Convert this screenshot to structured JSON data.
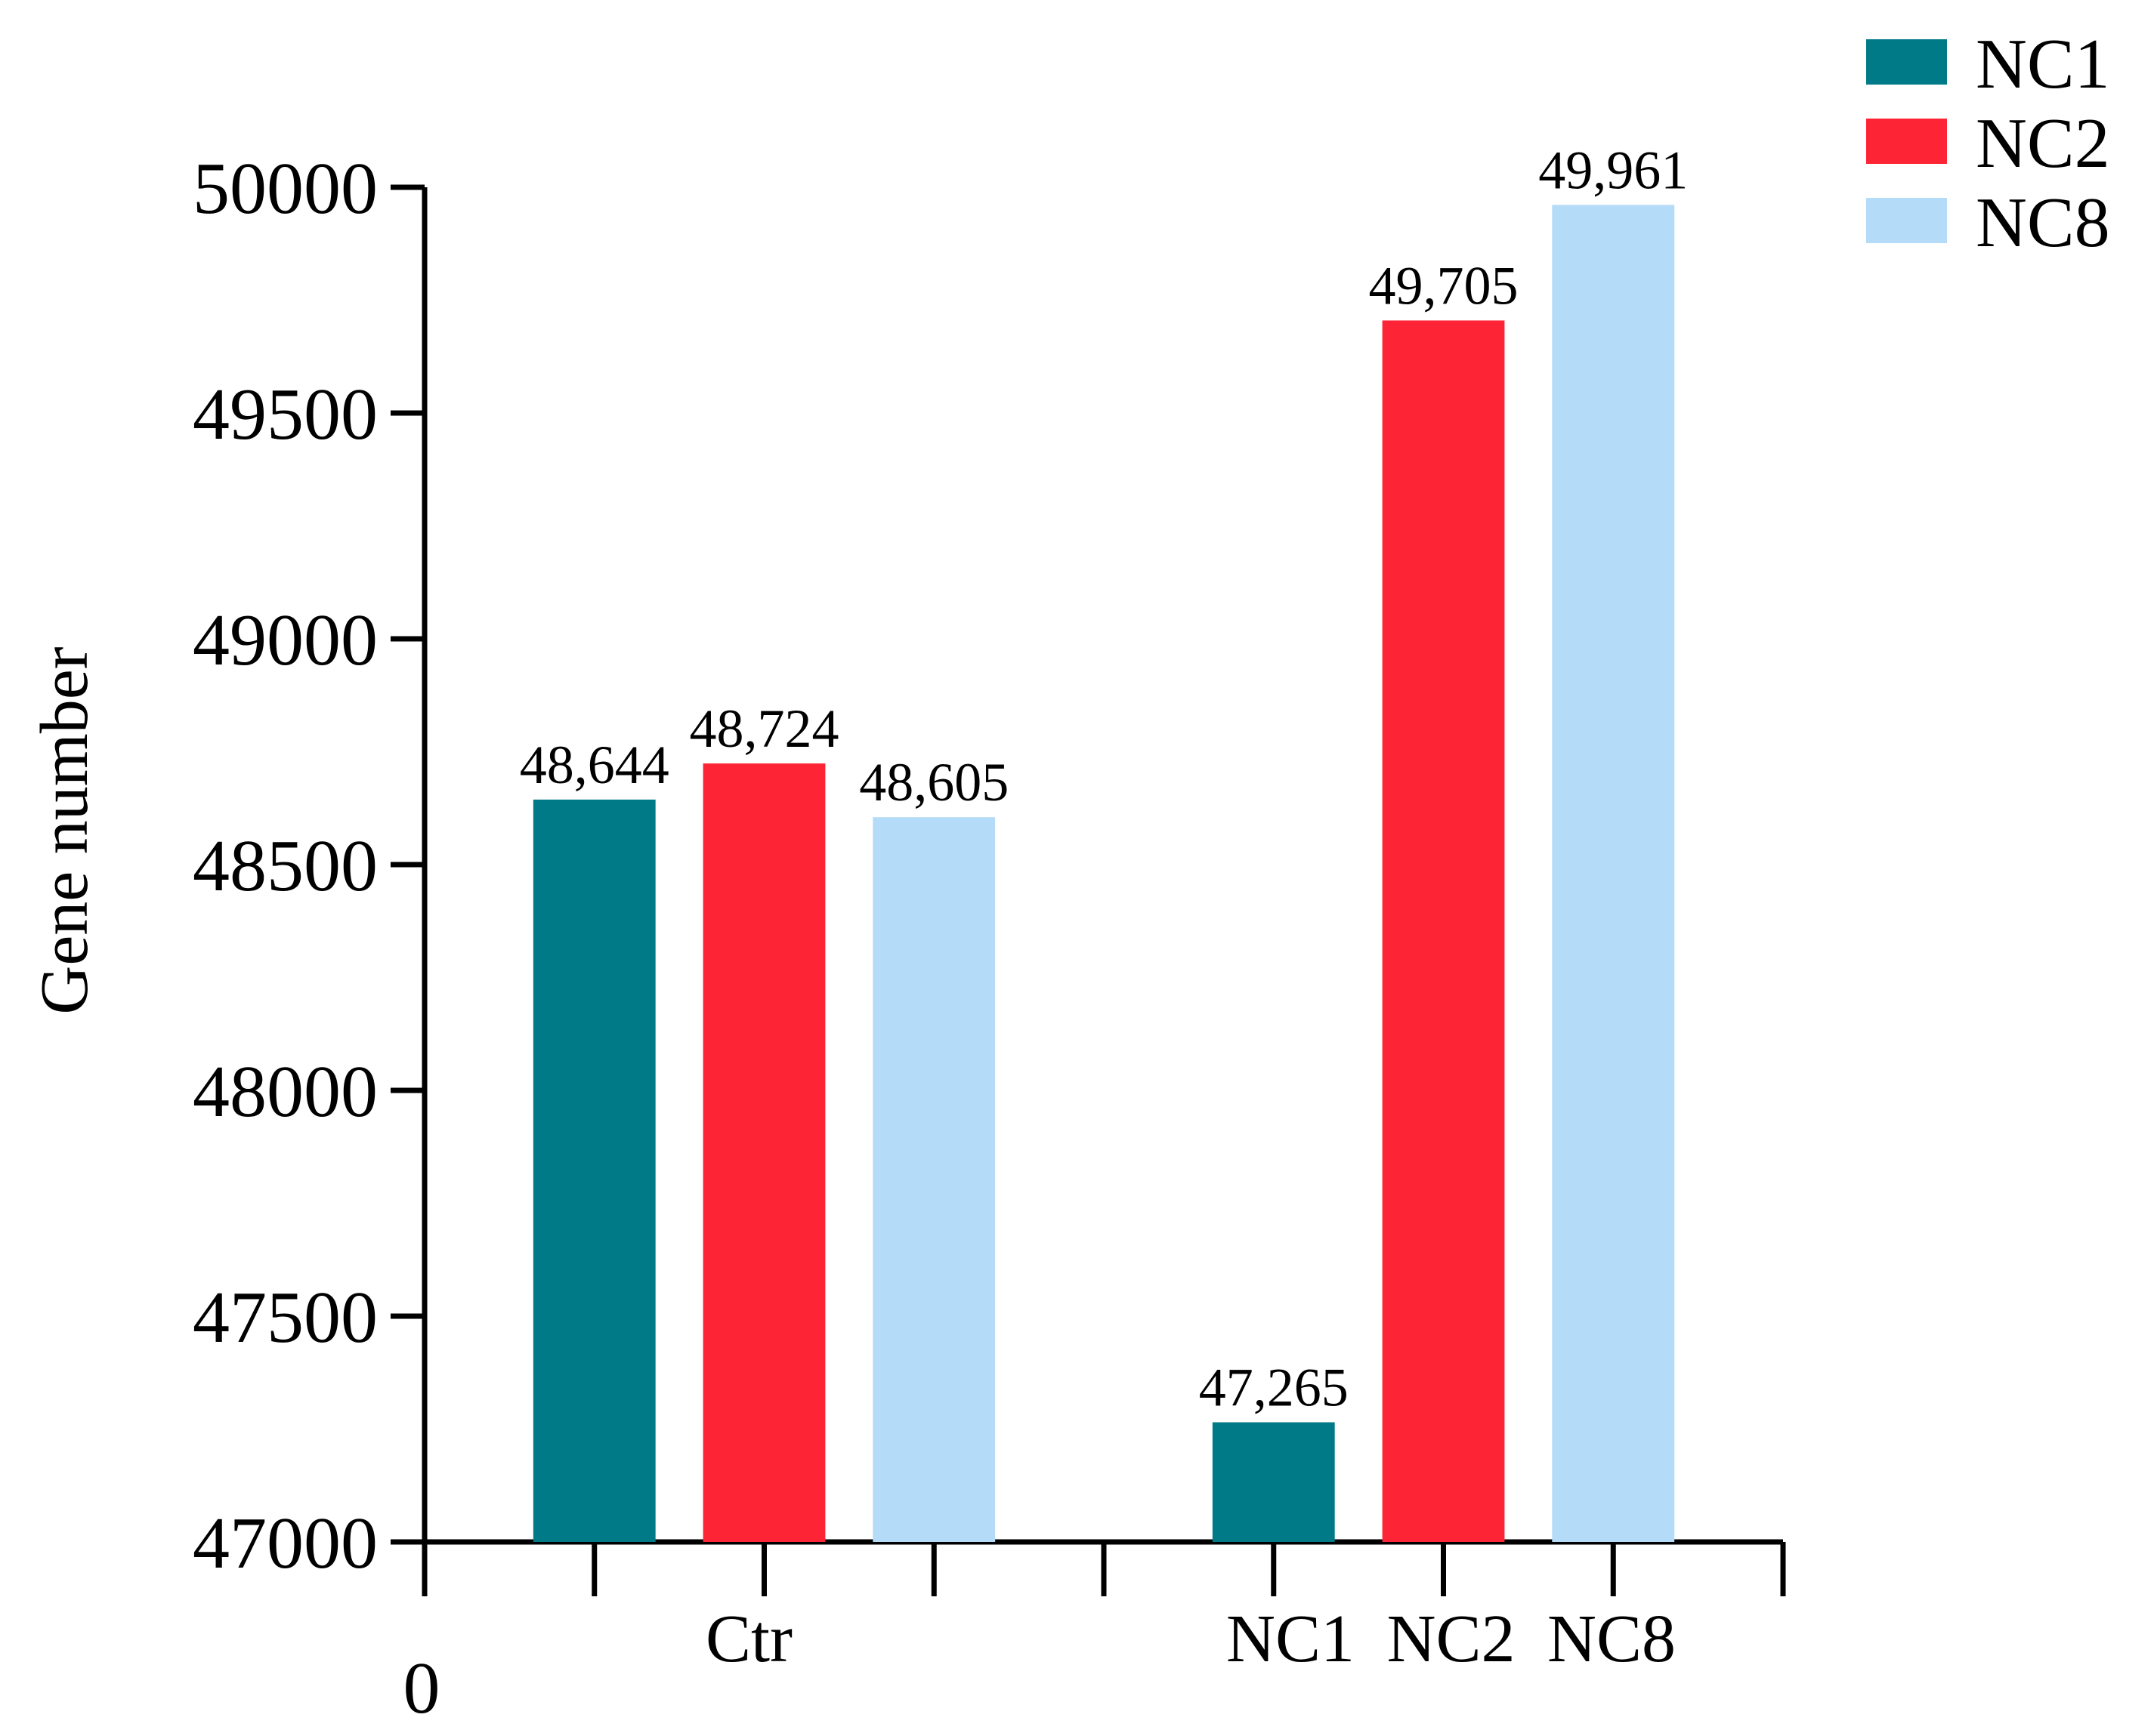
{
  "chart_data": {
    "type": "bar",
    "ylabel": "Gene number",
    "xlabel": "",
    "ylim": [
      47000,
      50000
    ],
    "yticks": [
      47000,
      47500,
      48000,
      48500,
      49000,
      49500,
      50000
    ],
    "origin_label": "0",
    "groups": [
      {
        "label": "Ctr",
        "bars": [
          {
            "series": "NC1",
            "value": 48644,
            "label": "48,644"
          },
          {
            "series": "NC2",
            "value": 48724,
            "label": "48,724"
          },
          {
            "series": "NC8",
            "value": 48605,
            "label": "48,605"
          }
        ]
      },
      {
        "label": "NC1 NC2 NC8",
        "bars": [
          {
            "series": "NC1",
            "value": 47265,
            "label": "47,265"
          },
          {
            "series": "NC2",
            "value": 49705,
            "label": "49,705"
          },
          {
            "series": "NC8",
            "value": 49961,
            "label": "49,961"
          }
        ]
      }
    ],
    "series": [
      {
        "name": "NC1",
        "color": "#007a87"
      },
      {
        "name": "NC2",
        "color": "#fd2535"
      },
      {
        "name": "NC8",
        "color": "#b4dbf7"
      }
    ],
    "legend_position": "top-right",
    "grid": false
  }
}
